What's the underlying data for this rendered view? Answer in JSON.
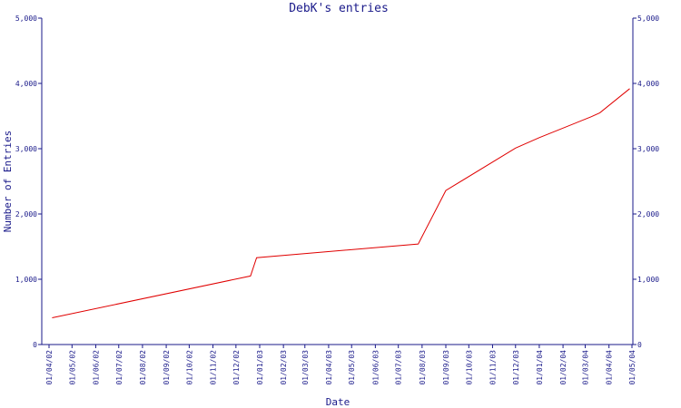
{
  "chart_data": {
    "type": "line",
    "title": "DebK's entries",
    "xlabel": "Date",
    "ylabel": "Number of Entries",
    "ylim": [
      0,
      5000
    ],
    "y_ticks": [
      0,
      1000,
      2000,
      3000,
      4000,
      5000
    ],
    "y_tick_labels": [
      "0",
      "1,000",
      "2,000",
      "3,000",
      "4,000",
      "5,000"
    ],
    "x_tick_labels": [
      "01/04/02",
      "01/05/02",
      "01/06/02",
      "01/07/02",
      "01/08/02",
      "01/09/02",
      "01/10/02",
      "01/11/02",
      "01/12/02",
      "01/01/03",
      "01/02/03",
      "01/03/03",
      "01/04/03",
      "01/05/03",
      "01/06/03",
      "01/07/03",
      "01/08/03",
      "01/09/03",
      "01/10/03",
      "01/11/03",
      "01/12/03",
      "01/01/04",
      "01/02/04",
      "01/03/04",
      "01/04/04",
      "01/05/04"
    ],
    "grid": false,
    "colors": {
      "series": "#e00000",
      "axes": "#1a1a8a"
    },
    "series": [
      {
        "x": [
          "2002-04-05",
          "2002-12-20",
          "2002-12-28",
          "2003-07-27",
          "2003-09-01",
          "2003-12-01",
          "2004-01-01",
          "2004-03-09",
          "2004-03-20",
          "2004-04-28"
        ],
        "values": [
          410,
          1050,
          1330,
          1540,
          2360,
          3010,
          3170,
          3490,
          3550,
          3920
        ]
      }
    ]
  }
}
